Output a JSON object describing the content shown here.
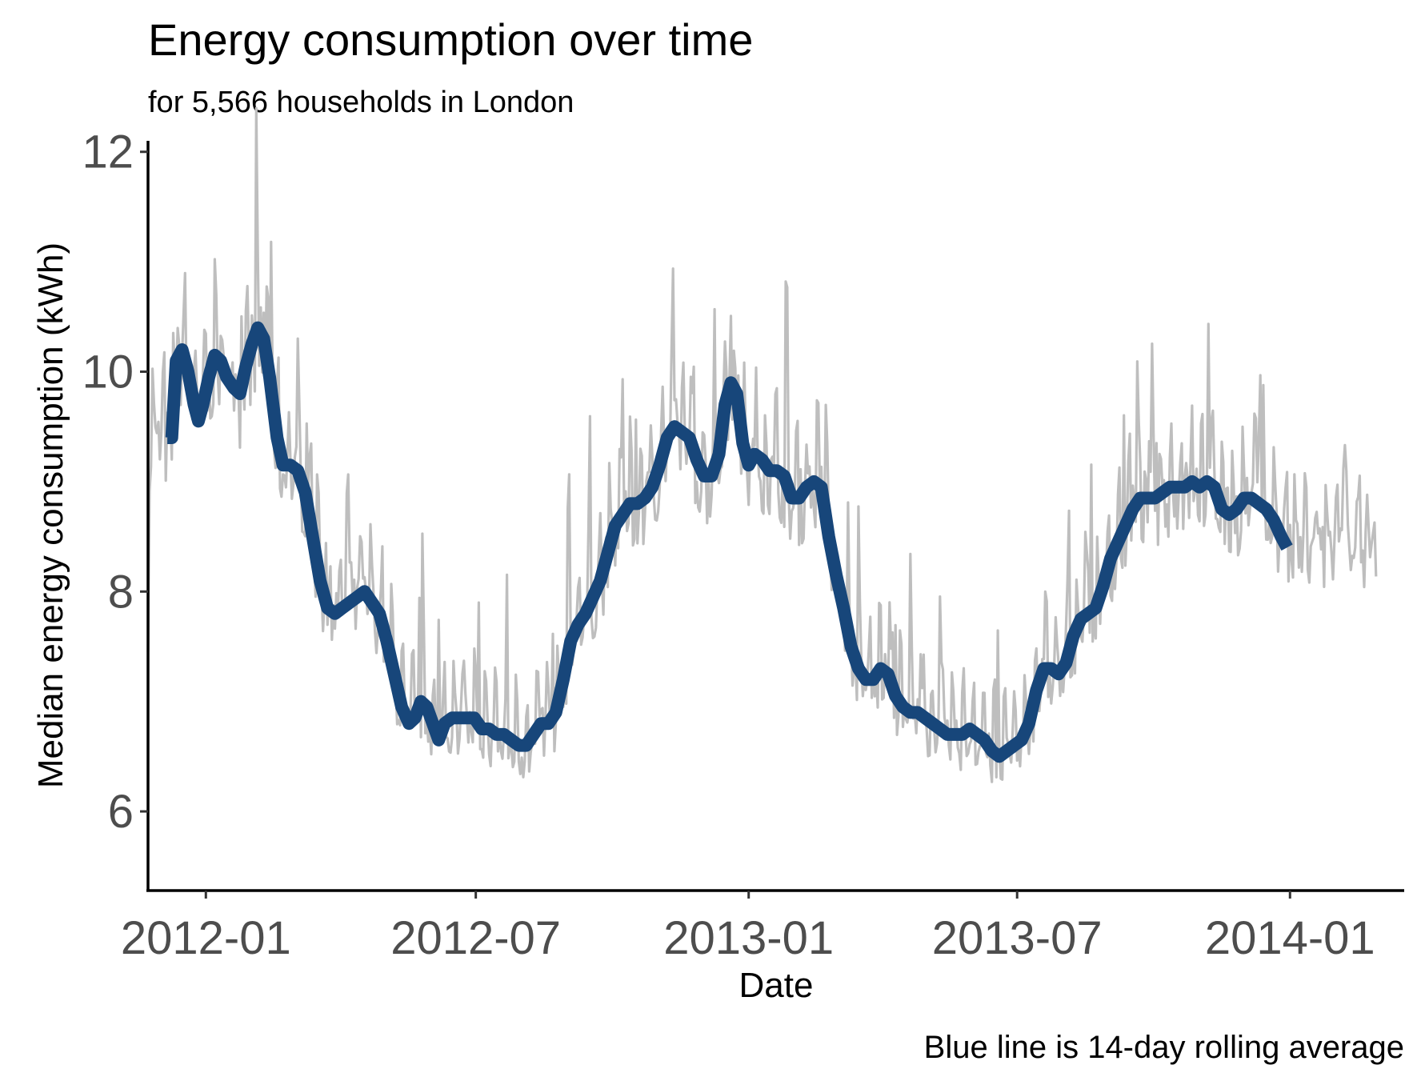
{
  "chart_data": {
    "type": "line",
    "title": "Energy consumption over time",
    "subtitle": "for 5,566 households in London",
    "xlabel": "Date",
    "ylabel": "Median energy consumption (kWh)",
    "caption": "Blue line is 14-day rolling average",
    "x_ticks": [
      "2012-01",
      "2012-07",
      "2013-01",
      "2013-07",
      "2014-01"
    ],
    "x_tick_dates": [
      "2012-01-01",
      "2012-07-01",
      "2013-01-01",
      "2013-07-01",
      "2014-01-01"
    ],
    "xlim": [
      "2011-11-23",
      "2014-03-19"
    ],
    "y_ticks": [
      6,
      8,
      10,
      12
    ],
    "ylim": [
      5.28,
      12.1
    ],
    "grid": false,
    "colors": {
      "daily": "#bebebe",
      "rolling": "#17467a",
      "tick_text": "#4d4d4d"
    },
    "series": [
      {
        "name": "Blue line is 14-day rolling average",
        "kind": "rolling",
        "points": [
          [
            "2011-12-06",
            9.4
          ],
          [
            "2011-12-09",
            9.4
          ],
          [
            "2011-12-12",
            10.1
          ],
          [
            "2011-12-16",
            10.2
          ],
          [
            "2011-12-20",
            10.0
          ],
          [
            "2011-12-24",
            9.7
          ],
          [
            "2011-12-27",
            9.55
          ],
          [
            "2011-12-30",
            9.7
          ],
          [
            "2012-01-03",
            9.95
          ],
          [
            "2012-01-07",
            10.15
          ],
          [
            "2012-01-11",
            10.1
          ],
          [
            "2012-01-15",
            9.95
          ],
          [
            "2012-01-20",
            9.85
          ],
          [
            "2012-01-24",
            9.8
          ],
          [
            "2012-01-28",
            10.05
          ],
          [
            "2012-02-01",
            10.25
          ],
          [
            "2012-02-05",
            10.4
          ],
          [
            "2012-02-09",
            10.3
          ],
          [
            "2012-02-13",
            9.95
          ],
          [
            "2012-02-18",
            9.4
          ],
          [
            "2012-02-22",
            9.15
          ],
          [
            "2012-02-27",
            9.15
          ],
          [
            "2012-03-03",
            9.1
          ],
          [
            "2012-03-08",
            8.9
          ],
          [
            "2012-03-13",
            8.5
          ],
          [
            "2012-03-18",
            8.1
          ],
          [
            "2012-03-23",
            7.85
          ],
          [
            "2012-03-28",
            7.8
          ],
          [
            "2012-04-02",
            7.85
          ],
          [
            "2012-04-07",
            7.9
          ],
          [
            "2012-04-12",
            7.95
          ],
          [
            "2012-04-17",
            8.0
          ],
          [
            "2012-04-22",
            7.9
          ],
          [
            "2012-04-27",
            7.8
          ],
          [
            "2012-05-02",
            7.55
          ],
          [
            "2012-05-07",
            7.25
          ],
          [
            "2012-05-12",
            6.95
          ],
          [
            "2012-05-17",
            6.8
          ],
          [
            "2012-05-21",
            6.85
          ],
          [
            "2012-05-25",
            7.0
          ],
          [
            "2012-05-29",
            6.95
          ],
          [
            "2012-06-02",
            6.8
          ],
          [
            "2012-06-06",
            6.65
          ],
          [
            "2012-06-10",
            6.8
          ],
          [
            "2012-06-15",
            6.85
          ],
          [
            "2012-06-20",
            6.85
          ],
          [
            "2012-06-25",
            6.85
          ],
          [
            "2012-06-30",
            6.85
          ],
          [
            "2012-07-05",
            6.75
          ],
          [
            "2012-07-10",
            6.75
          ],
          [
            "2012-07-15",
            6.7
          ],
          [
            "2012-07-20",
            6.7
          ],
          [
            "2012-07-25",
            6.65
          ],
          [
            "2012-07-30",
            6.6
          ],
          [
            "2012-08-04",
            6.6
          ],
          [
            "2012-08-09",
            6.7
          ],
          [
            "2012-08-14",
            6.8
          ],
          [
            "2012-08-19",
            6.8
          ],
          [
            "2012-08-24",
            6.9
          ],
          [
            "2012-08-29",
            7.2
          ],
          [
            "2012-09-03",
            7.55
          ],
          [
            "2012-09-08",
            7.7
          ],
          [
            "2012-09-13",
            7.8
          ],
          [
            "2012-09-18",
            7.95
          ],
          [
            "2012-09-23",
            8.1
          ],
          [
            "2012-09-28",
            8.35
          ],
          [
            "2012-10-03",
            8.6
          ],
          [
            "2012-10-08",
            8.7
          ],
          [
            "2012-10-13",
            8.8
          ],
          [
            "2012-10-18",
            8.8
          ],
          [
            "2012-10-23",
            8.85
          ],
          [
            "2012-10-28",
            8.95
          ],
          [
            "2012-11-02",
            9.15
          ],
          [
            "2012-11-07",
            9.4
          ],
          [
            "2012-11-12",
            9.5
          ],
          [
            "2012-11-17",
            9.45
          ],
          [
            "2012-11-22",
            9.4
          ],
          [
            "2012-11-27",
            9.2
          ],
          [
            "2012-12-02",
            9.05
          ],
          [
            "2012-12-07",
            9.05
          ],
          [
            "2012-12-12",
            9.25
          ],
          [
            "2012-12-16",
            9.7
          ],
          [
            "2012-12-20",
            9.9
          ],
          [
            "2012-12-24",
            9.8
          ],
          [
            "2012-12-28",
            9.35
          ],
          [
            "2013-01-01",
            9.15
          ],
          [
            "2013-01-05",
            9.25
          ],
          [
            "2013-01-10",
            9.2
          ],
          [
            "2013-01-15",
            9.1
          ],
          [
            "2013-01-20",
            9.1
          ],
          [
            "2013-01-25",
            9.05
          ],
          [
            "2013-01-30",
            8.85
          ],
          [
            "2013-02-04",
            8.85
          ],
          [
            "2013-02-09",
            8.95
          ],
          [
            "2013-02-14",
            9.0
          ],
          [
            "2013-02-19",
            8.95
          ],
          [
            "2013-02-24",
            8.5
          ],
          [
            "2013-03-01",
            8.15
          ],
          [
            "2013-03-06",
            7.85
          ],
          [
            "2013-03-11",
            7.5
          ],
          [
            "2013-03-16",
            7.3
          ],
          [
            "2013-03-21",
            7.2
          ],
          [
            "2013-03-26",
            7.2
          ],
          [
            "2013-03-31",
            7.3
          ],
          [
            "2013-04-05",
            7.25
          ],
          [
            "2013-04-10",
            7.05
          ],
          [
            "2013-04-15",
            6.95
          ],
          [
            "2013-04-20",
            6.9
          ],
          [
            "2013-04-25",
            6.9
          ],
          [
            "2013-04-30",
            6.85
          ],
          [
            "2013-05-05",
            6.8
          ],
          [
            "2013-05-10",
            6.75
          ],
          [
            "2013-05-15",
            6.7
          ],
          [
            "2013-05-20",
            6.7
          ],
          [
            "2013-05-25",
            6.7
          ],
          [
            "2013-05-30",
            6.75
          ],
          [
            "2013-06-04",
            6.7
          ],
          [
            "2013-06-09",
            6.65
          ],
          [
            "2013-06-14",
            6.55
          ],
          [
            "2013-06-19",
            6.5
          ],
          [
            "2013-06-24",
            6.55
          ],
          [
            "2013-06-29",
            6.6
          ],
          [
            "2013-07-04",
            6.65
          ],
          [
            "2013-07-09",
            6.8
          ],
          [
            "2013-07-14",
            7.1
          ],
          [
            "2013-07-19",
            7.3
          ],
          [
            "2013-07-24",
            7.3
          ],
          [
            "2013-07-29",
            7.25
          ],
          [
            "2013-08-03",
            7.35
          ],
          [
            "2013-08-08",
            7.6
          ],
          [
            "2013-08-13",
            7.75
          ],
          [
            "2013-08-18",
            7.8
          ],
          [
            "2013-08-23",
            7.85
          ],
          [
            "2013-08-28",
            8.05
          ],
          [
            "2013-09-02",
            8.3
          ],
          [
            "2013-09-07",
            8.45
          ],
          [
            "2013-09-12",
            8.6
          ],
          [
            "2013-09-17",
            8.75
          ],
          [
            "2013-09-22",
            8.85
          ],
          [
            "2013-09-27",
            8.85
          ],
          [
            "2013-10-02",
            8.85
          ],
          [
            "2013-10-07",
            8.9
          ],
          [
            "2013-10-12",
            8.95
          ],
          [
            "2013-10-17",
            8.95
          ],
          [
            "2013-10-22",
            8.95
          ],
          [
            "2013-10-27",
            9.0
          ],
          [
            "2013-11-01",
            8.95
          ],
          [
            "2013-11-06",
            9.0
          ],
          [
            "2013-11-11",
            8.95
          ],
          [
            "2013-11-16",
            8.75
          ],
          [
            "2013-11-21",
            8.7
          ],
          [
            "2013-11-26",
            8.75
          ],
          [
            "2013-12-01",
            8.85
          ],
          [
            "2013-12-06",
            8.85
          ],
          [
            "2013-12-11",
            8.8
          ],
          [
            "2013-12-16",
            8.75
          ],
          [
            "2013-12-21",
            8.65
          ],
          [
            "2013-12-26",
            8.5
          ],
          [
            "2013-12-30",
            8.4
          ]
        ]
      }
    ]
  }
}
